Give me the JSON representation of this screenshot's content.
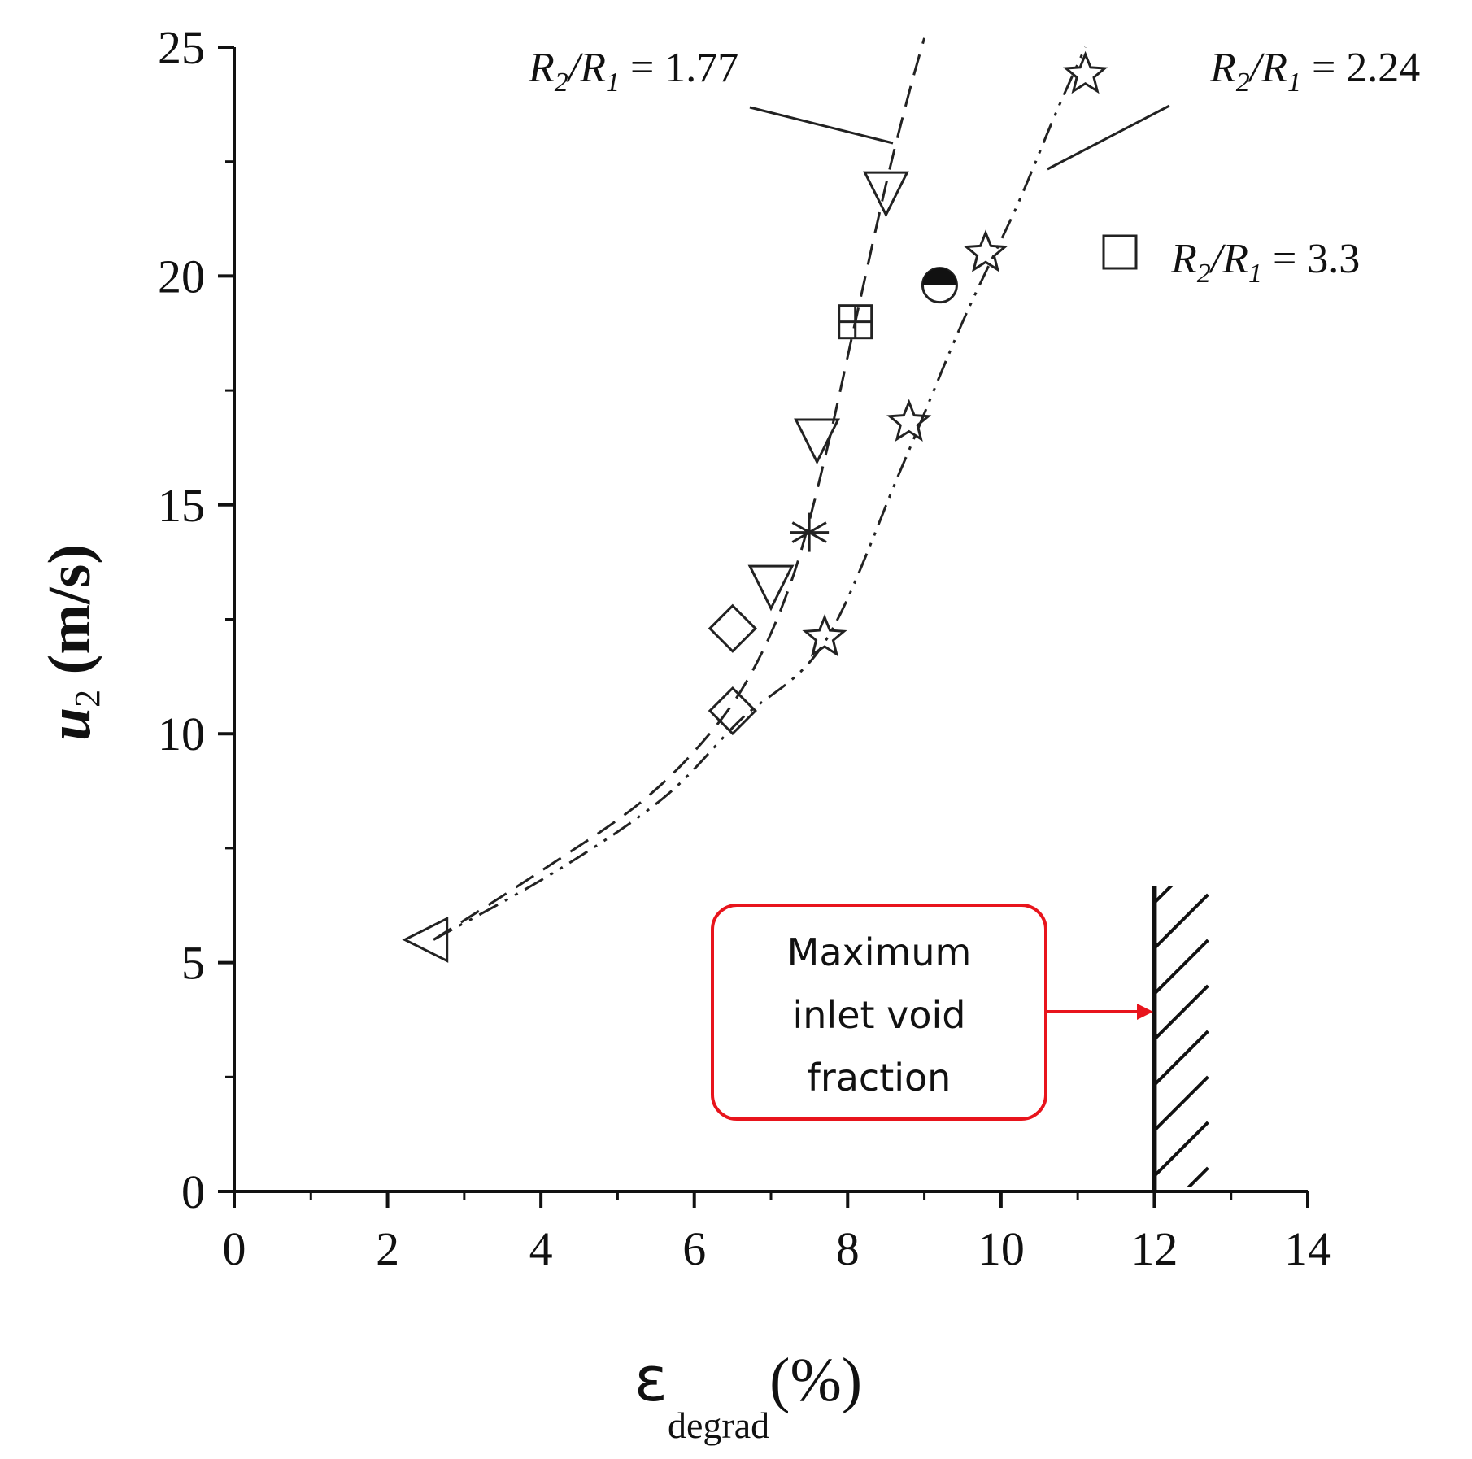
{
  "chart_data": {
    "type": "scatter",
    "title": "",
    "xlabel": "ε",
    "xlabel_subscript": "degrad",
    "xlabel_suffix": "(%)",
    "ylabel": "u",
    "ylabel_subscript": "2",
    "ylabel_suffix": " (m/s)",
    "xlim": [
      0,
      14
    ],
    "ylim": [
      0,
      25
    ],
    "x_ticks": [
      "0",
      "2",
      "4",
      "6",
      "8",
      "10",
      "12",
      "14"
    ],
    "y_ticks": [
      "0",
      "5",
      "10",
      "15",
      "20",
      "25"
    ],
    "grid": false,
    "points": [
      {
        "marker": "left-triangle",
        "x": 2.5,
        "y": 5.5
      },
      {
        "marker": "diamond",
        "x": 6.5,
        "y": 10.5
      },
      {
        "marker": "diamond",
        "x": 6.5,
        "y": 12.3
      },
      {
        "marker": "down-triangle",
        "x": 7.0,
        "y": 13.2
      },
      {
        "marker": "asterisk",
        "x": 7.5,
        "y": 14.4
      },
      {
        "marker": "down-triangle",
        "x": 7.6,
        "y": 16.4
      },
      {
        "marker": "boxed-plus",
        "x": 8.1,
        "y": 19.0
      },
      {
        "marker": "down-triangle",
        "x": 8.5,
        "y": 21.8
      },
      {
        "marker": "half-filled-circle",
        "x": 9.2,
        "y": 19.8
      },
      {
        "marker": "star",
        "x": 7.7,
        "y": 12.1
      },
      {
        "marker": "star",
        "x": 8.8,
        "y": 16.8
      },
      {
        "marker": "star",
        "x": 9.8,
        "y": 20.5
      },
      {
        "marker": "star",
        "x": 11.1,
        "y": 24.4
      }
    ],
    "series": [
      {
        "name": "R2/R1 = 1.77",
        "style": "dashed",
        "x": [
          2.6,
          4.0,
          5.3,
          6.2,
          6.8,
          7.3,
          7.7,
          8.1,
          8.5,
          8.8,
          9.0
        ],
        "y": [
          5.5,
          7.0,
          8.5,
          10.0,
          11.5,
          13.5,
          16.0,
          19.0,
          22.0,
          24.0,
          25.2
        ]
      },
      {
        "name": "R2/R1 = 2.24",
        "style": "dash-dot-dot",
        "x": [
          2.6,
          4.2,
          5.6,
          6.6,
          7.7,
          8.7,
          9.5,
          10.2,
          10.7,
          11.1
        ],
        "y": [
          5.5,
          7.0,
          8.6,
          10.3,
          12.0,
          15.8,
          19.0,
          21.5,
          23.5,
          25.0
        ]
      }
    ],
    "annotations": {
      "r177": {
        "r2": "R",
        "r2_sub": "2",
        "slash": "/R",
        "r1_sub": "1",
        "value": " = 1.77"
      },
      "r224": {
        "r2": "R",
        "r2_sub": "2",
        "slash": "/R",
        "r1_sub": "1",
        "value": " = 2.24"
      },
      "r33": {
        "r2": "R",
        "r2_sub": "2",
        "slash": "/R",
        "r1_sub": "1",
        "value": " = 3.3"
      }
    },
    "vertical_limit": {
      "x": 12
    },
    "callout": {
      "lines": [
        "Maximum",
        "inlet void",
        "fraction"
      ],
      "border_color": "#e8141c",
      "arrow_color": "#e8141c"
    }
  }
}
